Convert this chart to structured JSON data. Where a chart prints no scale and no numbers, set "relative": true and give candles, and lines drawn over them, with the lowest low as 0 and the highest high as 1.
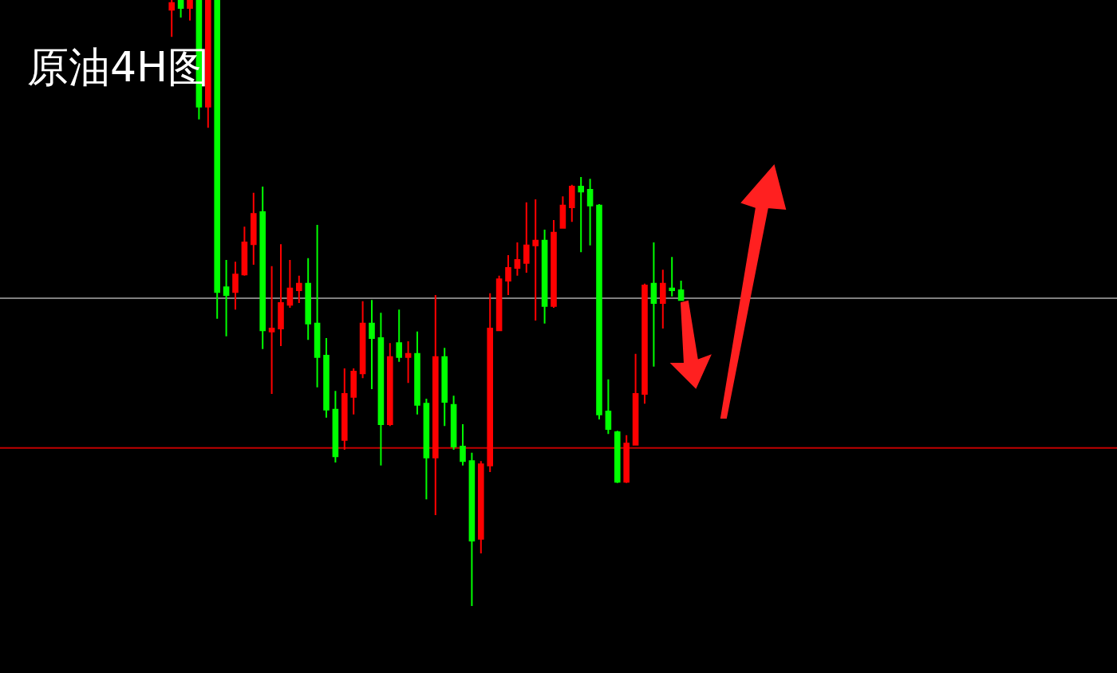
{
  "chart_data": {
    "type": "candlestick",
    "title": "原油4H图",
    "relative": true,
    "legend": false,
    "categories": [
      null,
      null,
      null,
      null,
      null,
      null,
      null,
      null,
      null,
      null,
      null,
      null,
      null,
      null,
      null,
      null,
      null,
      null,
      null,
      null,
      null,
      null,
      null,
      null,
      null,
      null,
      null,
      null,
      null,
      null,
      null,
      null,
      null,
      null,
      null,
      null,
      null,
      null,
      null,
      null,
      null,
      null,
      null,
      null,
      null,
      null,
      null,
      null,
      null,
      null,
      null,
      null,
      null,
      null,
      null,
      null,
      null
    ],
    "ohlc": [
      [
        0.984,
        1,
        0.939,
        0.995
      ],
      [
        1,
        1,
        0.971,
        0.987
      ],
      [
        0.987,
        1,
        0.966,
        1
      ],
      [
        1,
        1,
        0.803,
        0.824
      ],
      [
        0.824,
        1,
        0.789,
        1
      ],
      [
        1,
        1,
        0.474,
        0.518
      ],
      [
        0.526,
        0.571,
        0.445,
        0.513
      ],
      [
        0.518,
        0.568,
        0.489,
        0.547
      ],
      [
        0.547,
        0.626,
        0.545,
        0.6
      ],
      [
        0.597,
        0.682,
        0.563,
        0.647
      ],
      [
        0.65,
        0.692,
        0.424,
        0.455
      ],
      [
        0.453,
        0.561,
        0.35,
        0.458
      ],
      [
        0.458,
        0.597,
        0.429,
        0.5
      ],
      [
        0.497,
        0.571,
        0.492,
        0.524
      ],
      [
        0.521,
        0.545,
        0.5,
        0.532
      ],
      [
        0.532,
        0.574,
        0.439,
        0.466
      ],
      [
        0.466,
        0.629,
        0.361,
        0.411
      ],
      [
        0.413,
        0.442,
        0.311,
        0.324
      ],
      [
        0.324,
        0.355,
        0.237,
        0.247
      ],
      [
        0.274,
        0.392,
        0.258,
        0.35
      ],
      [
        0.345,
        0.392,
        0.316,
        0.387
      ],
      [
        0.384,
        0.503,
        0.376,
        0.466
      ],
      [
        0.466,
        0.505,
        0.358,
        0.442
      ],
      [
        0.442,
        0.484,
        0.232,
        0.3
      ],
      [
        0.3,
        0.434,
        0.297,
        0.411
      ],
      [
        0.434,
        0.489,
        0.403,
        0.411
      ],
      [
        0.411,
        0.437,
        0.368,
        0.416
      ],
      [
        0.416,
        0.453,
        0.316,
        0.332
      ],
      [
        0.334,
        0.342,
        0.176,
        0.245
      ],
      [
        0.245,
        0.513,
        0.15,
        0.411
      ],
      [
        0.411,
        0.426,
        0.297,
        0.337
      ],
      [
        0.332,
        0.347,
        0.258,
        0.263
      ],
      [
        0.263,
        0.3,
        0.232,
        0.239
      ],
      [
        0.239,
        0.253,
        0,
        0.108
      ],
      [
        0.111,
        0.239,
        0.087,
        0.234
      ],
      [
        0.232,
        0.516,
        0.221,
        0.458
      ],
      [
        0.455,
        0.545,
        0.455,
        0.539
      ],
      [
        0.537,
        0.579,
        0.513,
        0.558
      ],
      [
        0.558,
        0.6,
        0.545,
        0.571
      ],
      [
        0.566,
        0.666,
        0.55,
        0.595
      ],
      [
        0.595,
        0.671,
        0.471,
        0.603
      ],
      [
        0.603,
        0.621,
        0.466,
        0.495
      ],
      [
        0.495,
        0.637,
        0.492,
        0.616
      ],
      [
        0.624,
        0.676,
        0.624,
        0.661
      ],
      [
        0.658,
        0.695,
        0.634,
        0.692
      ],
      [
        0.692,
        0.708,
        0.584,
        0.684
      ],
      [
        0.687,
        0.705,
        0.595,
        0.661
      ],
      [
        0.661,
        0.663,
        0.308,
        0.316
      ],
      [
        0.321,
        0.374,
        0.284,
        0.292
      ],
      [
        0.287,
        0.289,
        0.203,
        0.205
      ],
      [
        0.205,
        0.282,
        0.203,
        0.268
      ],
      [
        0.266,
        0.416,
        0.266,
        0.35
      ],
      [
        0.35,
        0.532,
        0.334,
        0.529
      ],
      [
        0.532,
        0.6,
        0.395,
        0.5
      ],
      [
        0.5,
        0.555,
        0.458,
        0.532
      ],
      [
        0.524,
        0.576,
        0.511,
        0.521
      ],
      [
        0.521,
        0.537,
        0.505,
        0.505
      ]
    ],
    "colors": [
      "#ff0000",
      "#00ff00",
      "#ff0000",
      "#00ff00",
      "#ff0000",
      "#00ff00",
      "#00ff00",
      "#ff0000",
      "#ff0000",
      "#ff0000",
      "#00ff00",
      "#ff0000",
      "#ff0000",
      "#ff0000",
      "#ff0000",
      "#00ff00",
      "#00ff00",
      "#00ff00",
      "#00ff00",
      "#ff0000",
      "#ff0000",
      "#ff0000",
      "#00ff00",
      "#00ff00",
      "#ff0000",
      "#00ff00",
      "#ff0000",
      "#00ff00",
      "#00ff00",
      "#ff0000",
      "#00ff00",
      "#00ff00",
      "#00ff00",
      "#00ff00",
      "#ff0000",
      "#ff0000",
      "#ff0000",
      "#ff0000",
      "#ff0000",
      "#ff0000",
      "#ff0000",
      "#00ff00",
      "#ff0000",
      "#ff0000",
      "#ff0000",
      "#00ff00",
      "#00ff00",
      "#00ff00",
      "#00ff00",
      "#00ff00",
      "#ff0000",
      "#ff0000",
      "#ff0000",
      "#00ff00",
      "#ff0000",
      "#00ff00",
      "#00ff00"
    ],
    "ref_lines": [
      {
        "axis": "y",
        "value": 0.508,
        "color": "#808080"
      },
      {
        "axis": "y",
        "value": 0.261,
        "color": "#c00000"
      }
    ]
  }
}
